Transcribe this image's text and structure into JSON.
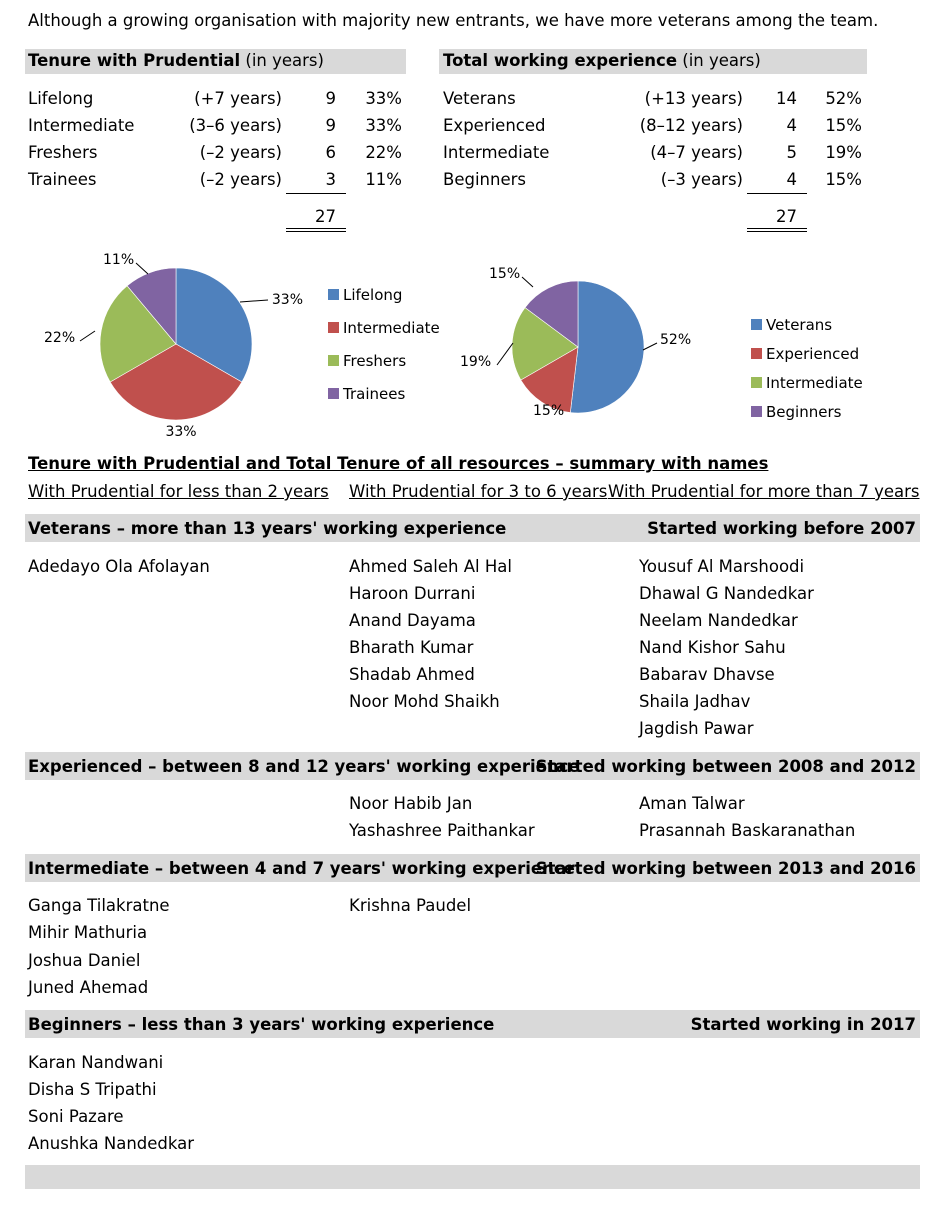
{
  "intro": "Although a growing organisation with majority new entrants, we have more veterans among the team.",
  "tenure": {
    "title_bold": "Tenure with Prudential",
    "title_rest": " (in years)",
    "rows": [
      {
        "name": "Lifelong",
        "range": "(+7 years)",
        "count": "9",
        "pct": "33%"
      },
      {
        "name": "Intermediate",
        "range": "(3–6 years)",
        "count": "9",
        "pct": "33%"
      },
      {
        "name": "Freshers",
        "range": "(–2 years)",
        "count": "6",
        "pct": "22%"
      },
      {
        "name": "Trainees",
        "range": "(–2 years)",
        "count": "3",
        "pct": "11%"
      }
    ],
    "total": "27"
  },
  "experience": {
    "title_bold": "Total working experience",
    "title_rest": " (in years)",
    "rows": [
      {
        "name": "Veterans",
        "range": "(+13 years)",
        "count": "14",
        "pct": "52%"
      },
      {
        "name": "Experienced",
        "range": "(8–12 years)",
        "count": "4",
        "pct": "15%"
      },
      {
        "name": "Intermediate",
        "range": "(4–7 years)",
        "count": "5",
        "pct": "19%"
      },
      {
        "name": "Beginners",
        "range": "(–3 years)",
        "count": "4",
        "pct": "15%"
      }
    ],
    "total": "27"
  },
  "chart_data": [
    {
      "type": "pie",
      "categories": [
        "Lifelong",
        "Intermediate",
        "Freshers",
        "Trainees"
      ],
      "values": [
        9,
        9,
        6,
        3
      ],
      "labels": [
        "33%",
        "33%",
        "22%",
        "11%"
      ],
      "colors": [
        "#4f81bd",
        "#c0504d",
        "#9bbb59",
        "#8064a2"
      ],
      "legend": "right"
    },
    {
      "type": "pie",
      "categories": [
        "Veterans",
        "Experienced",
        "Intermediate",
        "Beginners"
      ],
      "values": [
        14,
        4,
        5,
        4
      ],
      "labels": [
        "52%",
        "15%",
        "19%",
        "15%"
      ],
      "colors": [
        "#4f81bd",
        "#c0504d",
        "#9bbb59",
        "#8064a2"
      ],
      "legend": "right"
    }
  ],
  "summary": {
    "title": "Tenure with Prudential and Total Tenure of all resources – summary with names",
    "col_headers": [
      "With Prudential for less than 2 years",
      "With Prudential for 3 to 6 years",
      "With Prudential for more than 7 years"
    ]
  },
  "groups": [
    {
      "title": "Veterans – more than 13 years' working experience",
      "started": "Started working before 2007",
      "cols": [
        [
          "Adedayo Ola Afolayan"
        ],
        [
          "Ahmed Saleh Al Hal",
          "Haroon Durrani",
          "Anand Dayama",
          "Bharath Kumar",
          "Shadab Ahmed",
          "Noor Mohd Shaikh"
        ],
        [
          "Yousuf Al Marshoodi",
          "Dhawal G Nandedkar",
          "Neelam Nandedkar",
          "Nand Kishor Sahu",
          "Babarav Dhavse",
          "Shaila Jadhav",
          "Jagdish Pawar"
        ]
      ]
    },
    {
      "title": "Experienced – between 8 and 12 years' working experience",
      "started": "Started working between 2008 and 2012",
      "cols": [
        [],
        [
          "Noor Habib Jan",
          "Yashashree Paithankar"
        ],
        [
          "Aman Talwar",
          "Prasannah Baskaranathan"
        ]
      ]
    },
    {
      "title": "Intermediate – between 4 and 7 years' working experience",
      "started": "Started working between 2013 and 2016",
      "cols": [
        [
          "Ganga Tilakratne",
          "Mihir Mathuria",
          "Joshua Daniel",
          "Juned Ahemad"
        ],
        [
          "Krishna Paudel"
        ],
        []
      ]
    },
    {
      "title": "Beginners – less than 3 years' working experience",
      "started": "Started working in 2017",
      "cols": [
        [
          "Karan Nandwani",
          "Disha S Tripathi",
          "Soni Pazare",
          "Anushka Nandedkar"
        ],
        [],
        []
      ]
    }
  ]
}
